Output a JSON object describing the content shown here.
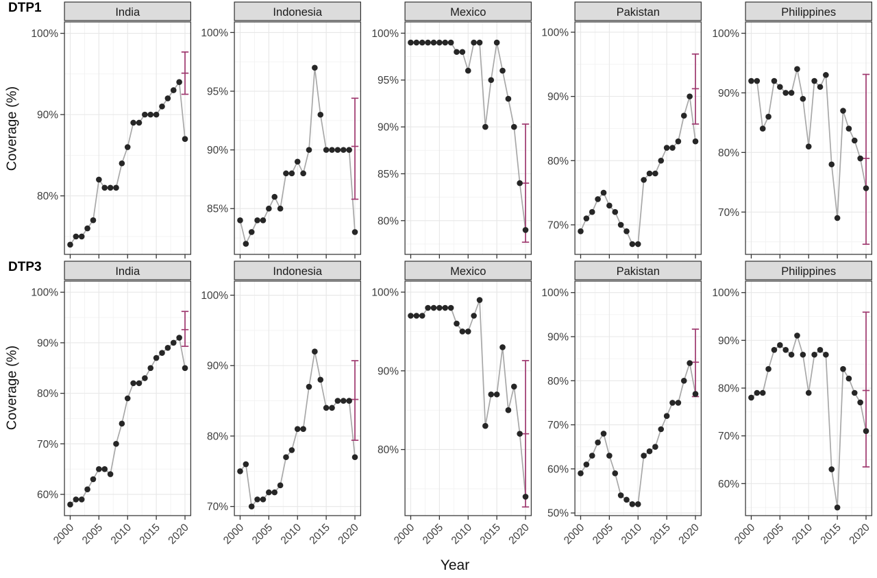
{
  "figure": {
    "ylabel": "Coverage (%)",
    "xlabel": "Year",
    "colors": {
      "point": "#262626",
      "line": "#a8a8a8",
      "errorbar": "#9e386e",
      "strip_bg": "#dcdcdc",
      "strip_border": "#2f2f2f",
      "panel_border": "#3c3c3c",
      "grid_major": "#e7e7e7",
      "grid_minor": "#f2f2f2",
      "tick_mark": "#333333",
      "tick_label": "#3d3d3d",
      "strip_text": "#1a1a1a"
    }
  },
  "chart_data": {
    "type": "line",
    "title": "",
    "xlabel": "Year",
    "ylabel": "Coverage (%)",
    "grid": true,
    "rows": [
      {
        "label": "DTP1"
      },
      {
        "label": "DTP3"
      }
    ],
    "columns": [
      "India",
      "Indonesia",
      "Mexico",
      "Pakistan",
      "Philippines"
    ],
    "x": [
      2000,
      2001,
      2002,
      2003,
      2004,
      2005,
      2006,
      2007,
      2008,
      2009,
      2010,
      2011,
      2012,
      2013,
      2014,
      2015,
      2016,
      2017,
      2018,
      2019,
      2020
    ],
    "xticks": [
      2000,
      2005,
      2010,
      2015,
      2020
    ],
    "xtick_labels": [
      "2000",
      "2005",
      "2010",
      "2015",
      "2020"
    ],
    "xlim": [
      1999,
      2021
    ],
    "facets": [
      {
        "row": "DTP1",
        "country": "India",
        "ylim": [
          72.8,
          101.4
        ],
        "yticks": [
          80,
          90,
          100
        ],
        "ytick_labels": [
          "80%",
          "90%",
          "100%"
        ],
        "values": [
          74,
          75,
          75,
          76,
          77,
          82,
          81,
          81,
          81,
          84,
          86,
          89,
          89,
          90,
          90,
          90,
          91,
          92,
          93,
          94,
          87
        ],
        "errorbar": {
          "year": 2020,
          "low": 92.5,
          "mid": 95.1,
          "high": 97.7
        }
      },
      {
        "row": "DTP1",
        "country": "Indonesia",
        "ylim": [
          81.1,
          100.9
        ],
        "yticks": [
          85,
          90,
          95,
          100
        ],
        "ytick_labels": [
          "85%",
          "90%",
          "95%",
          "100%"
        ],
        "values": [
          84,
          82,
          83,
          84,
          84,
          85,
          86,
          85,
          88,
          88,
          89,
          88,
          90,
          97,
          93,
          90,
          90,
          90,
          90,
          90,
          83
        ],
        "errorbar": {
          "year": 2020,
          "low": 85.8,
          "mid": 90.3,
          "high": 94.4
        }
      },
      {
        "row": "DTP1",
        "country": "Mexico",
        "ylim": [
          76.4,
          101.2
        ],
        "yticks": [
          80,
          85,
          90,
          95,
          100
        ],
        "ytick_labels": [
          "80%",
          "85%",
          "90%",
          "95%",
          "100%"
        ],
        "values": [
          99,
          99,
          99,
          99,
          99,
          99,
          99,
          99,
          98,
          98,
          96,
          99,
          99,
          90,
          95,
          99,
          96,
          93,
          90,
          84,
          79
        ],
        "errorbar": {
          "year": 2020,
          "low": 77.7,
          "mid": 84.0,
          "high": 90.3
        }
      },
      {
        "row": "DTP1",
        "country": "Pakistan",
        "ylim": [
          65.4,
          101.6
        ],
        "yticks": [
          70,
          80,
          90,
          100
        ],
        "ytick_labels": [
          "70%",
          "80%",
          "90%",
          "100%"
        ],
        "values": [
          69,
          71,
          72,
          74,
          75,
          73,
          72,
          70,
          69,
          67,
          67,
          77,
          78,
          78,
          80,
          82,
          82,
          83,
          87,
          90,
          83
        ],
        "errorbar": {
          "year": 2020,
          "low": 85.7,
          "mid": 91.2,
          "high": 96.6
        }
      },
      {
        "row": "DTP1",
        "country": "Philippines",
        "ylim": [
          62.9,
          101.9
        ],
        "yticks": [
          70,
          80,
          90,
          100
        ],
        "ytick_labels": [
          "70%",
          "80%",
          "90%",
          "100%"
        ],
        "values": [
          92,
          92,
          84,
          86,
          92,
          91,
          90,
          90,
          94,
          89,
          81,
          92,
          91,
          93,
          78,
          69,
          87,
          84,
          82,
          79,
          74
        ],
        "errorbar": {
          "year": 2020,
          "low": 64.6,
          "mid": 79.0,
          "high": 93.1
        }
      },
      {
        "row": "DTP3",
        "country": "India",
        "ylim": [
          55.8,
          102.2
        ],
        "yticks": [
          60,
          70,
          80,
          90,
          100
        ],
        "ytick_labels": [
          "60%",
          "70%",
          "80%",
          "90%",
          "100%"
        ],
        "values": [
          58,
          59,
          59,
          61,
          63,
          65,
          65,
          64,
          70,
          74,
          79,
          82,
          82,
          83,
          85,
          87,
          88,
          89,
          90,
          91,
          85
        ],
        "errorbar": {
          "year": 2020,
          "low": 89.3,
          "mid": 92.6,
          "high": 96.2
        }
      },
      {
        "row": "DTP3",
        "country": "Indonesia",
        "ylim": [
          68.7,
          102.0
        ],
        "yticks": [
          70,
          80,
          90,
          100
        ],
        "ytick_labels": [
          "70%",
          "80%",
          "90%",
          "100%"
        ],
        "values": [
          75,
          76,
          70,
          71,
          71,
          72,
          72,
          73,
          77,
          78,
          81,
          81,
          87,
          92,
          88,
          84,
          84,
          85,
          85,
          85,
          77
        ],
        "errorbar": {
          "year": 2020,
          "low": 79.4,
          "mid": 85.2,
          "high": 90.7
        }
      },
      {
        "row": "DTP3",
        "country": "Mexico",
        "ylim": [
          71.6,
          101.4
        ],
        "yticks": [
          80,
          90,
          100
        ],
        "ytick_labels": [
          "80%",
          "90%",
          "100%"
        ],
        "values": [
          97,
          97,
          97,
          98,
          98,
          98,
          98,
          98,
          96,
          95,
          95,
          97,
          99,
          83,
          87,
          87,
          93,
          85,
          88,
          82,
          74
        ],
        "errorbar": {
          "year": 2020,
          "low": 72.7,
          "mid": 82.0,
          "high": 91.3
        }
      },
      {
        "row": "DTP3",
        "country": "Pakistan",
        "ylim": [
          49.4,
          102.6
        ],
        "yticks": [
          50,
          60,
          70,
          80,
          90,
          100
        ],
        "ytick_labels": [
          "50%",
          "60%",
          "70%",
          "80%",
          "90%",
          "100%"
        ],
        "values": [
          59,
          61,
          63,
          66,
          68,
          63,
          59,
          54,
          53,
          52,
          52,
          63,
          64,
          65,
          69,
          72,
          75,
          75,
          80,
          84,
          77
        ],
        "errorbar": {
          "year": 2020,
          "low": 76.4,
          "mid": 84.2,
          "high": 91.7
        }
      },
      {
        "row": "DTP3",
        "country": "Philippines",
        "ylim": [
          53.3,
          102.4
        ],
        "yticks": [
          60,
          70,
          80,
          90,
          100
        ],
        "ytick_labels": [
          "60%",
          "70%",
          "80%",
          "90%",
          "100%"
        ],
        "values": [
          78,
          79,
          79,
          84,
          88,
          89,
          88,
          87,
          91,
          87,
          79,
          87,
          88,
          87,
          63,
          55,
          84,
          82,
          79,
          77,
          71
        ],
        "errorbar": {
          "year": 2020,
          "low": 63.5,
          "mid": 79.5,
          "high": 95.9
        }
      }
    ]
  }
}
